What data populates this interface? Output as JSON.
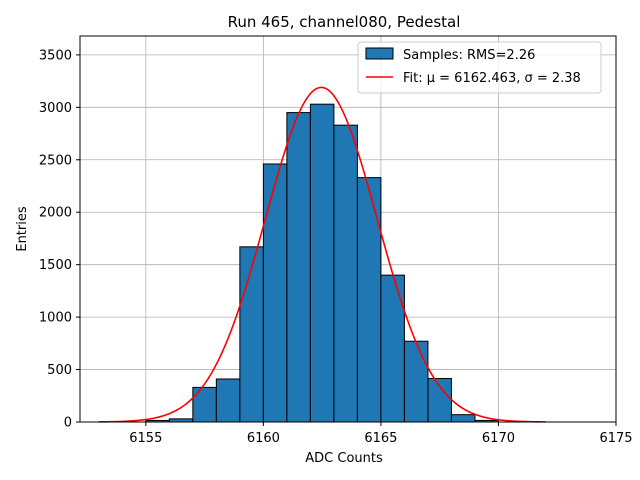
{
  "chart_data": {
    "type": "bar",
    "title": "Run 465, channel080, Pedestal",
    "xlabel": "ADC Counts",
    "ylabel": "Entries",
    "xlim": [
      6152.2,
      6175
    ],
    "ylim": [
      0,
      3680
    ],
    "xticks": [
      6155,
      6160,
      6165,
      6170,
      6175
    ],
    "yticks": [
      0,
      500,
      1000,
      1500,
      2000,
      2500,
      3000,
      3500
    ],
    "grid": true,
    "legend_position": "top-right",
    "histogram": {
      "name": "Samples: RMS=2.26",
      "color": "#1f77b4",
      "bin_width": 1,
      "bins": [
        {
          "left": 6155,
          "count": 15
        },
        {
          "left": 6156,
          "count": 30
        },
        {
          "left": 6157,
          "count": 330
        },
        {
          "left": 6158,
          "count": 410
        },
        {
          "left": 6159,
          "count": 1670
        },
        {
          "left": 6160,
          "count": 2460
        },
        {
          "left": 6161,
          "count": 2950
        },
        {
          "left": 6162,
          "count": 3030
        },
        {
          "left": 6163,
          "count": 2830
        },
        {
          "left": 6164,
          "count": 2330
        },
        {
          "left": 6165,
          "count": 1400
        },
        {
          "left": 6166,
          "count": 770
        },
        {
          "left": 6167,
          "count": 415
        },
        {
          "left": 6168,
          "count": 70
        },
        {
          "left": 6169,
          "count": 15
        }
      ]
    },
    "fit": {
      "name": "Fit: μ = 6162.463, σ = 2.38",
      "color": "#ff0000",
      "mu": 6162.463,
      "sigma": 2.38,
      "amplitude": 3190,
      "x_range": [
        6153,
        6172
      ]
    }
  }
}
